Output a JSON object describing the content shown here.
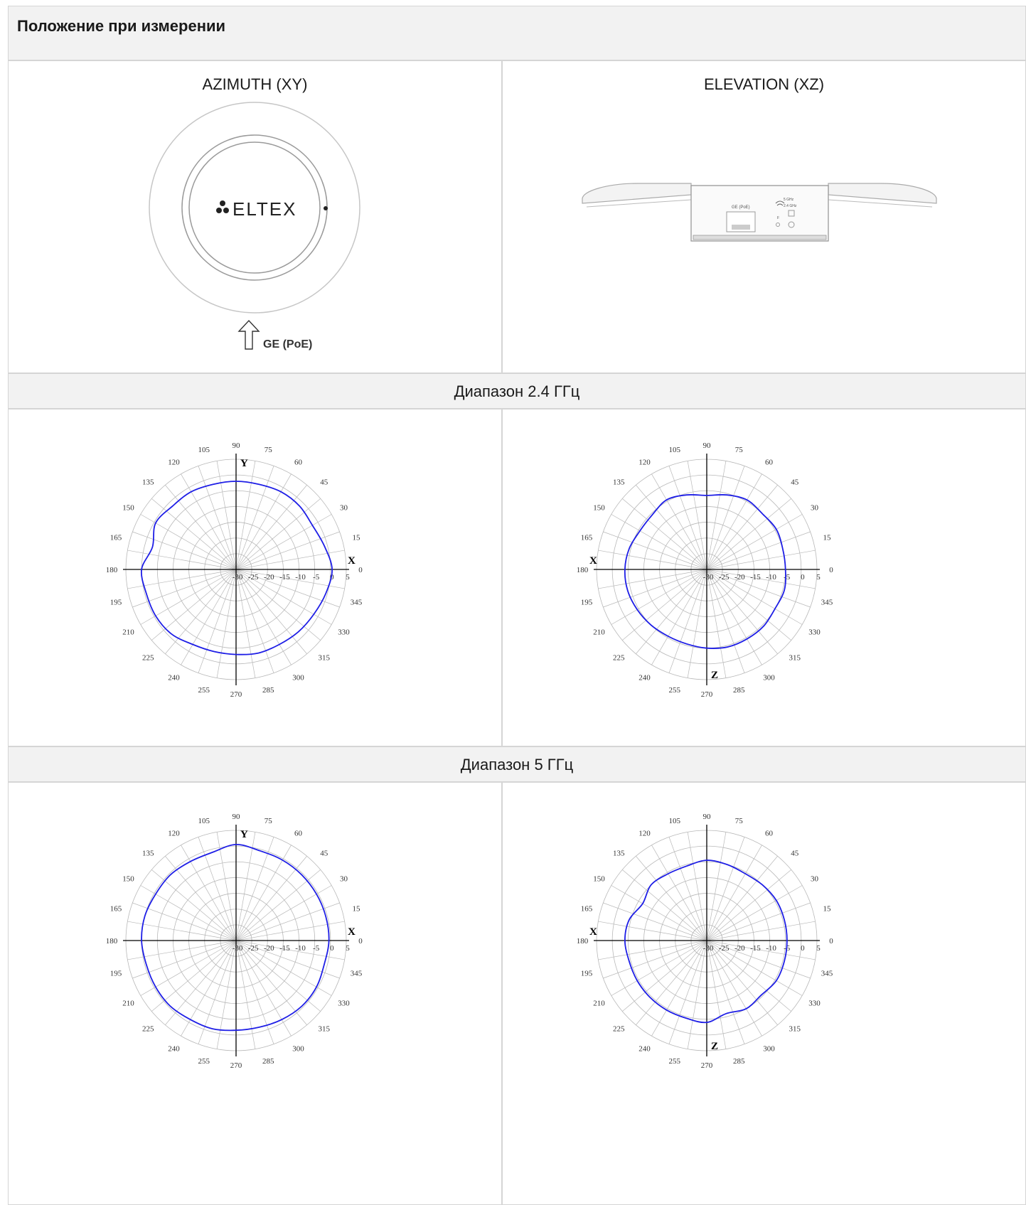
{
  "table": {
    "header_title": "Положение при измерении",
    "columns": [
      {
        "title": "AZIMUTH (XY)"
      },
      {
        "title": "ELEVATION (XZ)"
      }
    ],
    "bands": [
      "Диапазон 2.4 ГГц",
      "Диапазон 5 ГГц"
    ]
  },
  "device": {
    "logo_text": "ELTEX",
    "port_label": "GE (PoE)",
    "side_port_label": "GE (PoE)",
    "led_label_5": "5 GHz",
    "led_label_24": "2.4 GHz",
    "led_label_f": "F"
  },
  "polar_scale": {
    "angle_labels": [
      "0",
      "15",
      "30",
      "45",
      "60",
      "75",
      "90",
      "105",
      "120",
      "135",
      "150",
      "165",
      "180",
      "195",
      "210",
      "225",
      "240",
      "255",
      "270",
      "285",
      "300",
      "315",
      "330",
      "345"
    ],
    "radial_labels": [
      "-30",
      "-25",
      "-20",
      "-15",
      "-10",
      "-5",
      "0",
      "5"
    ],
    "rlim": [
      -30,
      5
    ]
  },
  "colors": {
    "pattern": "#1e1ee6",
    "grid": "#b8b8b8",
    "axis": "#000000"
  },
  "chart_data": [
    {
      "type": "polar-line",
      "band": "Диапазон 2.4 ГГц",
      "plane": "AZIMUTH (XY)",
      "axis_labels": {
        "horizontal": "X",
        "vertical": "Y"
      },
      "angles_deg": [
        0,
        15,
        30,
        45,
        60,
        75,
        90,
        105,
        120,
        135,
        150,
        165,
        180,
        195,
        210,
        225,
        240,
        255,
        270,
        285,
        300,
        315,
        330,
        345
      ],
      "gain_dbi": [
        0.5,
        -1.0,
        -2.0,
        -1.5,
        -1.5,
        -2.0,
        -2.0,
        -2.0,
        -1.5,
        -1.5,
        -0.5,
        -2.5,
        0.0,
        -0.5,
        -0.5,
        -1.0,
        -2.5,
        -3.0,
        -3.0,
        -2.5,
        -2.5,
        -2.0,
        -1.5,
        -0.5
      ]
    },
    {
      "type": "polar-line",
      "band": "Диапазон 2.4 ГГц",
      "plane": "ELEVATION (XZ)",
      "axis_labels": {
        "horizontal": "X",
        "vertical": "Z"
      },
      "angles_deg": [
        0,
        15,
        30,
        45,
        60,
        75,
        90,
        105,
        120,
        135,
        150,
        165,
        180,
        195,
        210,
        225,
        240,
        255,
        270,
        285,
        300,
        315,
        330,
        345
      ],
      "gain_dbi": [
        -5.0,
        -5.0,
        -4.5,
        -5.0,
        -4.5,
        -5.5,
        -6.5,
        -5.5,
        -4.5,
        -5.5,
        -5.5,
        -4.5,
        -4.0,
        -4.0,
        -4.5,
        -5.0,
        -5.5,
        -5.5,
        -5.0,
        -4.5,
        -4.5,
        -4.5,
        -5.0,
        -4.5
      ]
    },
    {
      "type": "polar-line",
      "band": "Диапазон 5 ГГц",
      "plane": "AZIMUTH (XY)",
      "axis_labels": {
        "horizontal": "X",
        "vertical": "Y"
      },
      "angles_deg": [
        0,
        15,
        30,
        45,
        60,
        75,
        90,
        105,
        120,
        135,
        150,
        165,
        180,
        195,
        210,
        225,
        240,
        255,
        270,
        285,
        300,
        315,
        330,
        345
      ],
      "gain_dbi": [
        -0.5,
        -0.5,
        -0.5,
        -0.5,
        -0.5,
        -0.5,
        0.5,
        -1.0,
        -1.0,
        -0.5,
        -0.5,
        0.0,
        0.0,
        -0.5,
        -0.5,
        -0.5,
        -1.0,
        -1.0,
        -1.5,
        -1.5,
        -1.0,
        -0.5,
        -0.5,
        -1.0
      ]
    },
    {
      "type": "polar-line",
      "band": "Диапазон 5 ГГц",
      "plane": "ELEVATION (XZ)",
      "axis_labels": {
        "horizontal": "X",
        "vertical": "Z"
      },
      "angles_deg": [
        0,
        15,
        30,
        45,
        60,
        75,
        90,
        105,
        120,
        135,
        150,
        165,
        180,
        195,
        210,
        225,
        240,
        255,
        270,
        285,
        300,
        315,
        330,
        345
      ],
      "gain_dbi": [
        -4.5,
        -4.5,
        -4.5,
        -5.0,
        -5.5,
        -5.0,
        -4.5,
        -5.5,
        -5.5,
        -5.0,
        -6.5,
        -4.5,
        -4.0,
        -4.5,
        -4.5,
        -4.5,
        -4.5,
        -4.5,
        -4.0,
        -6.0,
        -5.0,
        -5.5,
        -4.5,
        -4.5
      ]
    }
  ]
}
